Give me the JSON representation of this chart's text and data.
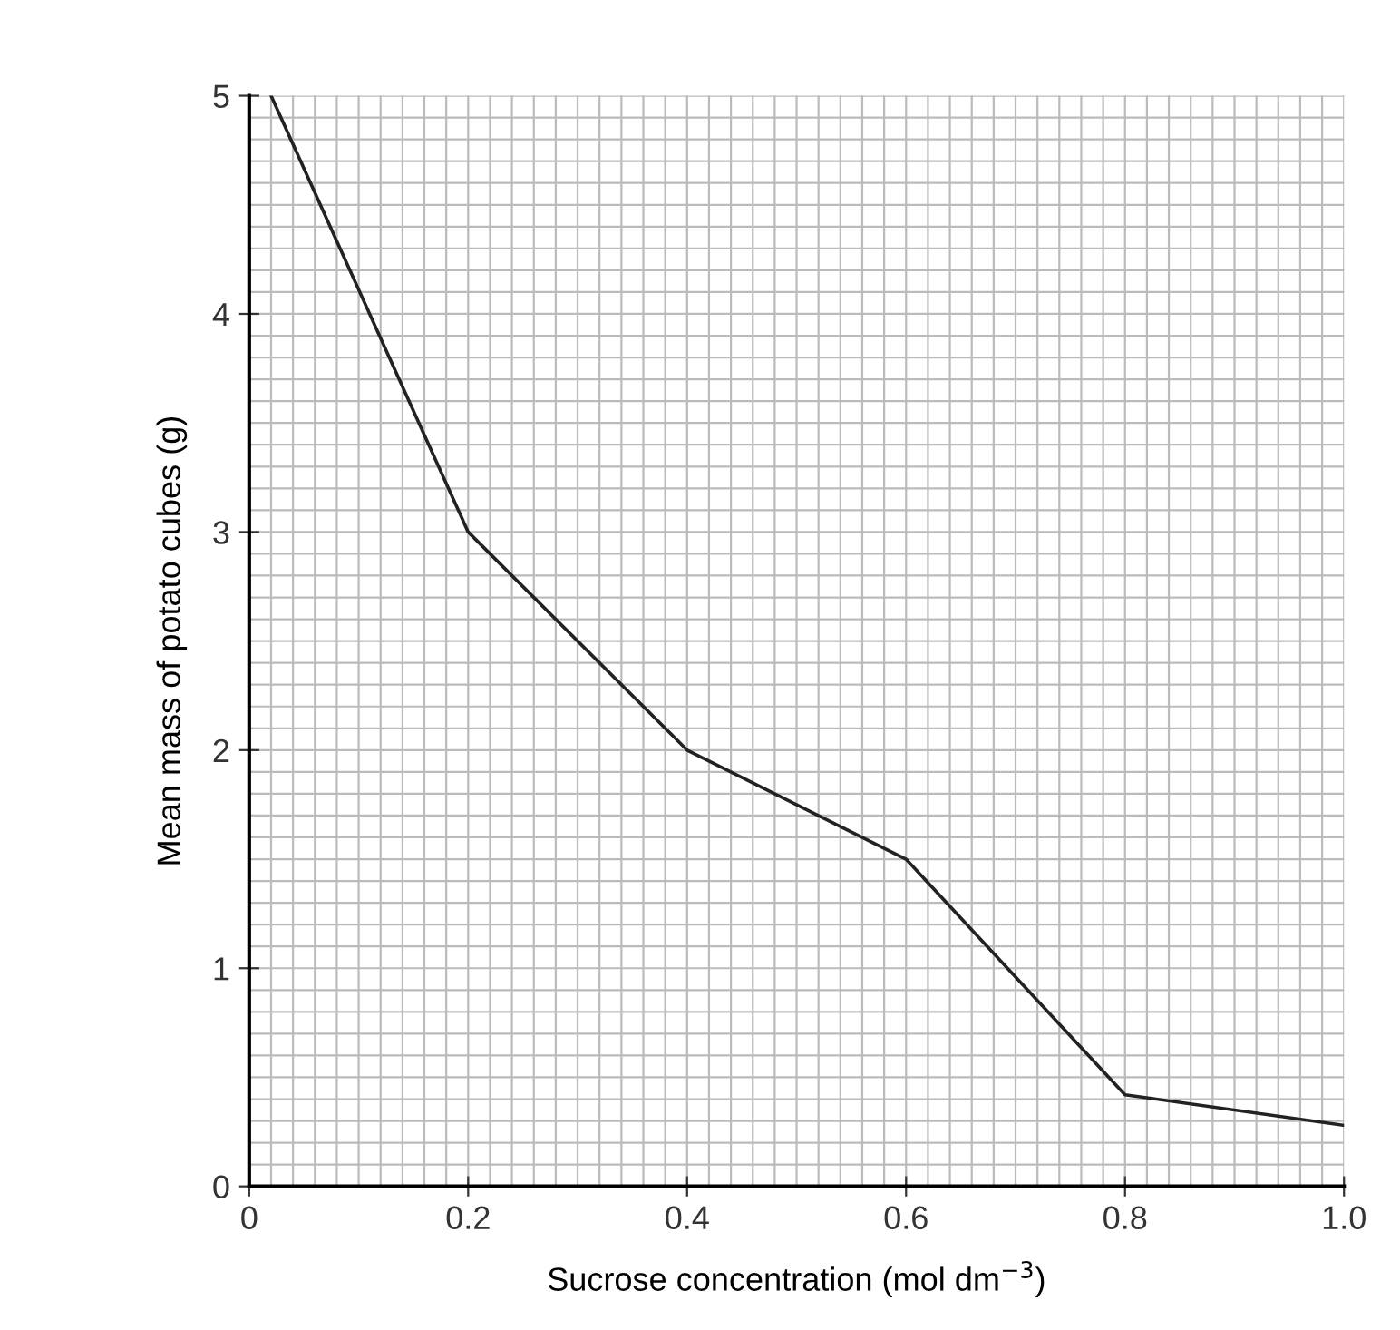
{
  "chart_data": {
    "type": "line",
    "xlabel": "Sucrose concentration (mol dm$^{−3}$)",
    "ylabel": "Mean mass of potato cubes (g)",
    "x": [
      0.02,
      0.2,
      0.4,
      0.6,
      0.8,
      1.0
    ],
    "series": [
      {
        "color": "#222222",
        "values": [
          5.0,
          3.0,
          2.0,
          1.5,
          0.42,
          0.28
        ]
      }
    ],
    "xlim": [
      0,
      1.0
    ],
    "ylim": [
      0,
      5
    ],
    "xticks": [
      0,
      0.2,
      0.4,
      0.6,
      0.8,
      {
        "value": 1,
        "label": "1.0"
      }
    ],
    "yticks": [
      0,
      1,
      2,
      3,
      4,
      5
    ],
    "grid": true,
    "marker": "none",
    "line_style": "solid"
  }
}
